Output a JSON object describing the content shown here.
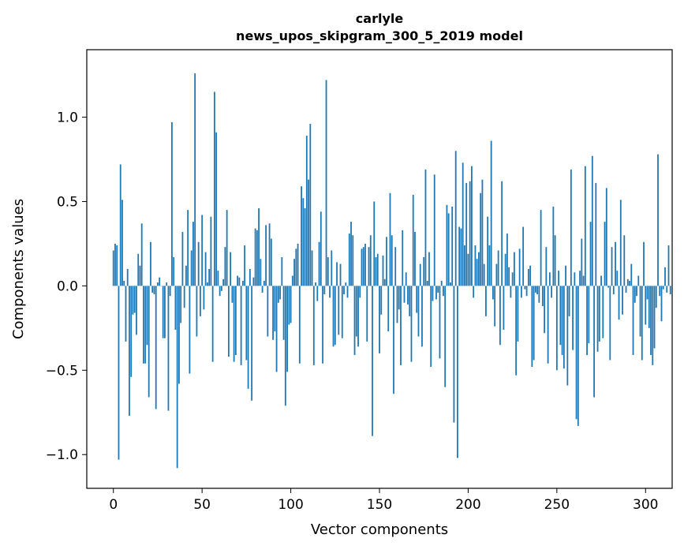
{
  "chart_data": {
    "type": "bar",
    "title": [
      "carlyle",
      "news_upos_skipgram_300_5_2019 model"
    ],
    "xlabel": "Vector components",
    "ylabel": "Components values",
    "xlim": [
      -15,
      315
    ],
    "ylim": [
      -1.2,
      1.4
    ],
    "xticks": [
      0,
      50,
      100,
      150,
      200,
      250,
      300
    ],
    "xtick_labels": [
      "0",
      "50",
      "100",
      "150",
      "200",
      "250",
      "300"
    ],
    "yticks": [
      -1.0,
      -0.5,
      0.0,
      0.5,
      1.0
    ],
    "ytick_labels": [
      "−1.0",
      "−0.5",
      "0.0",
      "0.5",
      "1.0"
    ],
    "grid": false,
    "bar_color": "#1f77b4",
    "values": [
      0.21,
      0.25,
      0.24,
      -1.03,
      0.72,
      0.51,
      0.03,
      -0.33,
      0.1,
      -0.77,
      -0.54,
      -0.17,
      -0.16,
      -0.29,
      0.19,
      0.12,
      0.37,
      -0.46,
      -0.46,
      -0.35,
      -0.66,
      0.26,
      -0.04,
      -0.05,
      -0.73,
      0.02,
      0.05,
      0,
      -0.31,
      -0.31,
      0.02,
      -0.74,
      -0.06,
      0.97,
      0.17,
      -0.26,
      -1.08,
      -0.58,
      -0.22,
      0.32,
      -0.13,
      0.12,
      0.45,
      -0.52,
      0.21,
      0.38,
      1.26,
      -0.3,
      0.26,
      -0.18,
      0.42,
      -0.14,
      0.2,
      0.02,
      0.1,
      0.41,
      -0.45,
      1.15,
      0.91,
      0.09,
      -0.06,
      -0.03,
      0.04,
      0.23,
      0.45,
      -0.42,
      0.2,
      -0.1,
      -0.45,
      -0.41,
      0.06,
      0.05,
      -0.47,
      0.03,
      0.24,
      -0.44,
      -0.61,
      0.1,
      -0.68,
      0.05,
      0.34,
      0.33,
      0.46,
      0.16,
      -0.04,
      0.03,
      0.36,
      -0.3,
      0.37,
      0.28,
      -0.32,
      -0.27,
      -0.51,
      -0.1,
      -0.08,
      0.17,
      -0.32,
      -0.71,
      -0.51,
      -0.23,
      -0.22,
      0.06,
      0.16,
      0.22,
      0.25,
      -0.46,
      0.59,
      0.52,
      0.46,
      0.89,
      0.63,
      0.96,
      0.21,
      -0.47,
      0.02,
      -0.09,
      0.26,
      0.44,
      -0.46,
      -0.05,
      1.22,
      0.17,
      -0.07,
      0.21,
      -0.36,
      -0.35,
      0.14,
      -0.29,
      0.13,
      -0.31,
      -0.05,
      0.02,
      -0.07,
      0.31,
      0.38,
      0.3,
      -0.41,
      -0.3,
      -0.36,
      -0.07,
      0.22,
      0.23,
      0.25,
      -0.33,
      0.23,
      0.3,
      -0.89,
      0.5,
      0.17,
      0.19,
      -0.4,
      -0.17,
      0.18,
      0.04,
      0.29,
      -0.27,
      0.55,
      0.3,
      -0.64,
      0.23,
      -0.22,
      -0.14,
      -0.47,
      0.33,
      -0.1,
      0.08,
      -0.11,
      -0.18,
      -0.45,
      0.54,
      0.32,
      -0.16,
      -0.3,
      0.13,
      -0.36,
      0.17,
      0.69,
      0.03,
      0.2,
      -0.48,
      -0.09,
      0.66,
      -0.08,
      -0.04,
      -0.43,
      0.03,
      -0.06,
      -0.6,
      0.48,
      0.43,
      0.02,
      0.47,
      -0.81,
      0.8,
      -1.02,
      0.35,
      0.34,
      0.73,
      0.24,
      0.61,
      0.19,
      0.62,
      0.71,
      -0.07,
      0.24,
      0.16,
      0.2,
      0.55,
      0.63,
      0.13,
      -0.18,
      0.41,
      0.24,
      0.86,
      -0.08,
      -0.24,
      0.13,
      0.21,
      -0.35,
      0.62,
      -0.26,
      0.19,
      0.31,
      0.11,
      -0.07,
      0.08,
      0.2,
      -0.53,
      -0.33,
      0.22,
      -0.07,
      0.35,
      -0.02,
      -0.06,
      0.1,
      0.12,
      -0.48,
      -0.44,
      -0.04,
      -0.05,
      -0.1,
      0.45,
      -0.12,
      -0.28,
      0.23,
      -0.46,
      0.08,
      -0.07,
      0.47,
      0.3,
      -0.5,
      0.09,
      -0.35,
      -0.41,
      -0.49,
      0.12,
      -0.59,
      -0.18,
      0.69,
      -0.38,
      0.08,
      -0.79,
      -0.83,
      0.09,
      0.28,
      0.06,
      0.71,
      -0.41,
      -0.34,
      0.38,
      0.77,
      -0.66,
      0.61,
      -0.39,
      -0.33,
      0.06,
      -0.31,
      0.38,
      0.58,
      -0.01,
      -0.44,
      0.23,
      -0.05,
      0.26,
      0.09,
      -0.2,
      0.51,
      -0.17,
      0.3,
      -0.04,
      0.04,
      0.03,
      0.13,
      -0.41,
      -0.1,
      -0.06,
      0.06,
      -0.3,
      -0.44,
      0.26,
      -0.23,
      -0.08,
      -0.25,
      -0.41,
      -0.47,
      -0.37,
      -0.13,
      0.78,
      -0.06,
      -0.21,
      -0.02,
      0.11,
      -0.04,
      0.24,
      -0.05
    ]
  }
}
